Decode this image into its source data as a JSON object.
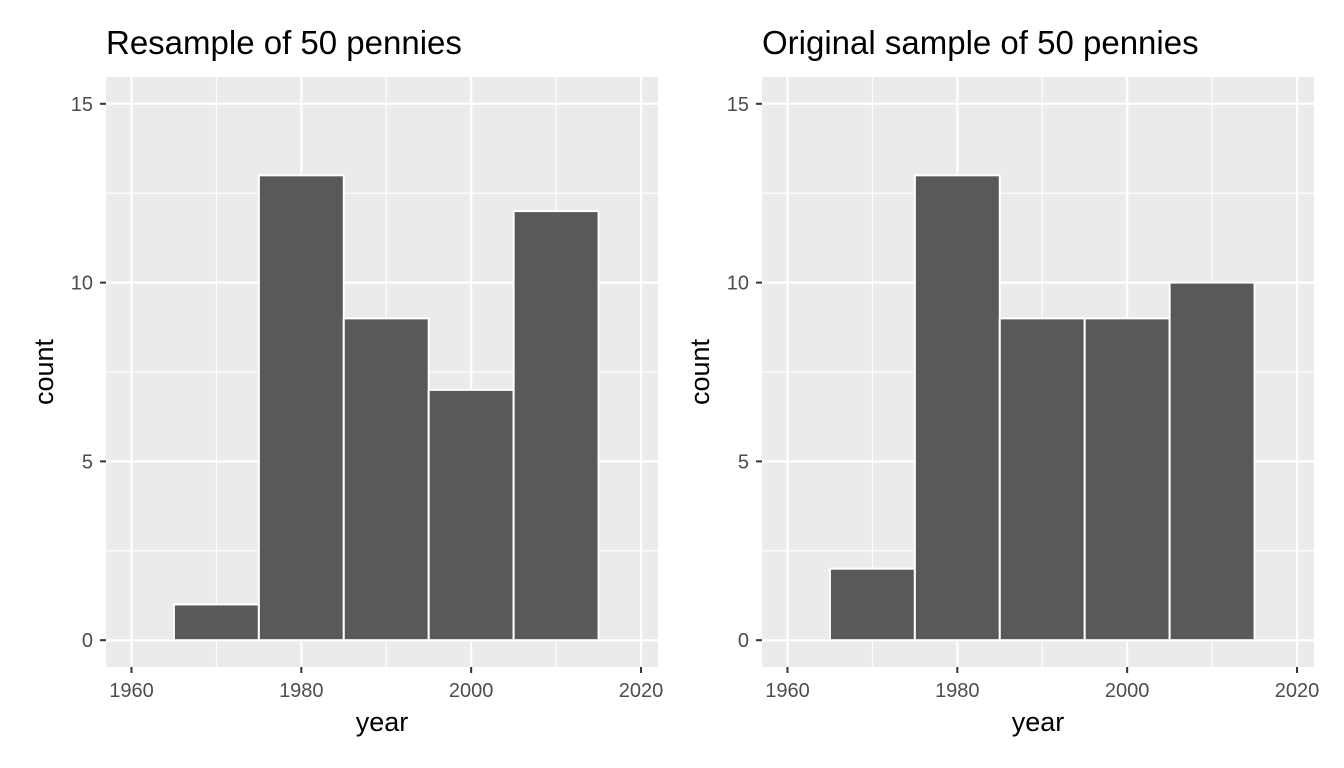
{
  "colors": {
    "panel_background": "#ebebeb",
    "grid": "#ffffff",
    "bar_fill": "#595959",
    "bar_outline": "#ffffff",
    "tick": "#333333",
    "tick_text": "#4d4d4d"
  },
  "chart_data": [
    {
      "type": "bar",
      "title": "Resample of 50 pennies",
      "xlabel": "year",
      "ylabel": "count",
      "xlim": [
        1957,
        2022
      ],
      "ylim": [
        -0.75,
        15.75
      ],
      "x_ticks": [
        1960,
        1980,
        2000,
        2020
      ],
      "y_ticks": [
        0,
        5,
        10,
        15
      ],
      "bin_width": 10,
      "bins": [
        {
          "start": 1965,
          "end": 1975,
          "count": 1
        },
        {
          "start": 1975,
          "end": 1985,
          "count": 13
        },
        {
          "start": 1985,
          "end": 1995,
          "count": 9
        },
        {
          "start": 1995,
          "end": 2005,
          "count": 7
        },
        {
          "start": 2005,
          "end": 2015,
          "count": 12
        }
      ],
      "grid": true
    },
    {
      "type": "bar",
      "title": "Original sample of 50 pennies",
      "xlabel": "year",
      "ylabel": "count",
      "xlim": [
        1957,
        2022
      ],
      "ylim": [
        -0.75,
        15.75
      ],
      "x_ticks": [
        1960,
        1980,
        2000,
        2020
      ],
      "y_ticks": [
        0,
        5,
        10,
        15
      ],
      "bin_width": 10,
      "bins": [
        {
          "start": 1965,
          "end": 1975,
          "count": 2
        },
        {
          "start": 1975,
          "end": 1985,
          "count": 13
        },
        {
          "start": 1985,
          "end": 1995,
          "count": 9
        },
        {
          "start": 1995,
          "end": 2005,
          "count": 9
        },
        {
          "start": 2005,
          "end": 2015,
          "count": 10
        }
      ],
      "grid": true
    }
  ]
}
